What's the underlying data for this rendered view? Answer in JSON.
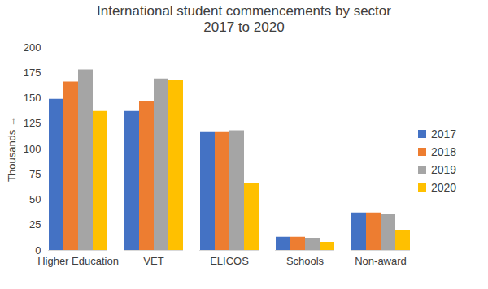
{
  "chart_data": {
    "type": "bar",
    "title": "International student commencements by sector",
    "subtitle": "2017 to 2020",
    "y_label": "Thousands",
    "categories": [
      "Higher Education",
      "VET",
      "ELICOS",
      "Schools",
      "Non-award"
    ],
    "series": [
      {
        "name": "2017",
        "color": "#4472c4",
        "values": [
          149,
          137,
          117,
          13,
          37
        ]
      },
      {
        "name": "2018",
        "color": "#ed7d31",
        "values": [
          166,
          147,
          117,
          13,
          37
        ]
      },
      {
        "name": "2019",
        "color": "#a5a5a5",
        "values": [
          178,
          169,
          118,
          12,
          36
        ]
      },
      {
        "name": "2020",
        "color": "#ffc000",
        "values": [
          137,
          168,
          66,
          8,
          20
        ]
      }
    ],
    "ylim": [
      0,
      200
    ],
    "yticks": [
      0,
      25,
      50,
      75,
      100,
      125,
      150,
      175,
      200
    ],
    "grid": false,
    "legend": "right"
  }
}
